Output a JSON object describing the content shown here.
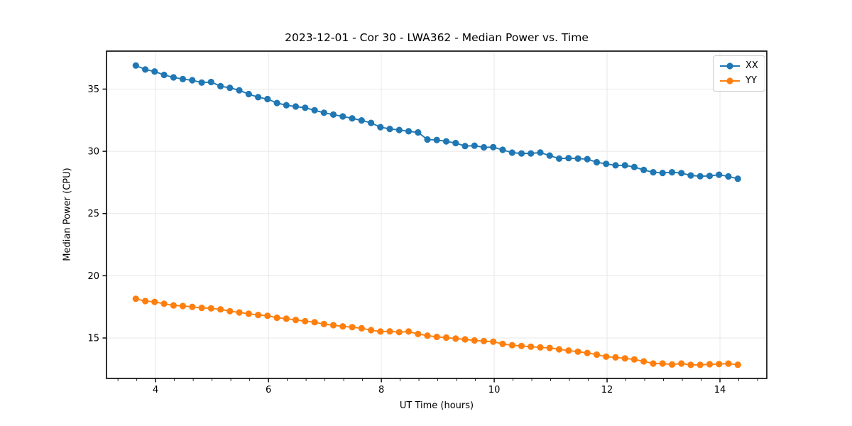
{
  "figure": {
    "title": "2023-12-01 - Cor 30 - LWA362 - Median Power vs. Time"
  },
  "chart_data": {
    "type": "line",
    "title": "2023-12-01 - Cor 30 - LWA362 - Median Power vs. Time",
    "xlabel": "UT Time (hours)",
    "ylabel": "Median Power (CPU)",
    "xlim": [
      3.13,
      14.83
    ],
    "ylim": [
      11.75,
      38.05
    ],
    "xticks": [
      4,
      6,
      8,
      10,
      12,
      14
    ],
    "yticks": [
      15,
      20,
      25,
      30,
      35
    ],
    "x_minor_step": 0.33333,
    "grid": true,
    "legend": {
      "position": "upper right"
    },
    "colors": {
      "grid": "#e8e8e8",
      "spine": "#000000",
      "tick_text": "#000000"
    },
    "x": [
      3.65,
      3.817,
      3.983,
      4.15,
      4.317,
      4.483,
      4.65,
      4.817,
      4.983,
      5.15,
      5.317,
      5.483,
      5.65,
      5.817,
      5.983,
      6.15,
      6.317,
      6.483,
      6.65,
      6.817,
      6.983,
      7.15,
      7.317,
      7.483,
      7.65,
      7.817,
      7.983,
      8.15,
      8.317,
      8.483,
      8.65,
      8.817,
      8.983,
      9.15,
      9.317,
      9.483,
      9.65,
      9.817,
      9.983,
      10.15,
      10.317,
      10.483,
      10.65,
      10.817,
      10.983,
      11.15,
      11.317,
      11.483,
      11.65,
      11.817,
      11.983,
      12.15,
      12.317,
      12.483,
      12.65,
      12.817,
      12.983,
      13.15,
      13.317,
      13.483,
      13.65,
      13.817,
      13.983,
      14.15,
      14.317
    ],
    "series": [
      {
        "name": "XX",
        "color": "#1f77b4",
        "marker": "circle",
        "values": [
          36.89,
          36.57,
          36.41,
          36.14,
          35.94,
          35.8,
          35.71,
          35.52,
          35.57,
          35.23,
          35.1,
          34.9,
          34.6,
          34.35,
          34.2,
          33.88,
          33.7,
          33.6,
          33.5,
          33.3,
          33.1,
          32.95,
          32.8,
          32.65,
          32.48,
          32.28,
          31.94,
          31.8,
          31.71,
          31.61,
          31.52,
          30.95,
          30.91,
          30.8,
          30.66,
          30.42,
          30.45,
          30.32,
          30.33,
          30.12,
          29.89,
          29.83,
          29.83,
          29.9,
          29.66,
          29.41,
          29.45,
          29.41,
          29.37,
          29.12,
          28.99,
          28.87,
          28.87,
          28.74,
          28.5,
          28.32,
          28.26,
          28.32,
          28.25,
          28.06,
          28.0,
          28.02,
          28.12,
          27.98,
          27.8
        ]
      },
      {
        "name": "YY",
        "color": "#ff7f0e",
        "marker": "circle",
        "values": [
          18.15,
          17.97,
          17.9,
          17.75,
          17.62,
          17.57,
          17.5,
          17.42,
          17.38,
          17.3,
          17.15,
          17.05,
          16.95,
          16.85,
          16.78,
          16.63,
          16.55,
          16.45,
          16.35,
          16.27,
          16.12,
          16.03,
          15.93,
          15.87,
          15.78,
          15.63,
          15.52,
          15.53,
          15.47,
          15.52,
          15.32,
          15.19,
          15.09,
          15.03,
          14.95,
          14.89,
          14.8,
          14.75,
          14.7,
          14.52,
          14.42,
          14.36,
          14.3,
          14.25,
          14.2,
          14.09,
          13.99,
          13.9,
          13.8,
          13.66,
          13.5,
          13.44,
          13.36,
          13.28,
          13.12,
          12.95,
          12.95,
          12.87,
          12.95,
          12.84,
          12.84,
          12.89,
          12.9,
          12.94,
          12.85
        ]
      }
    ]
  }
}
